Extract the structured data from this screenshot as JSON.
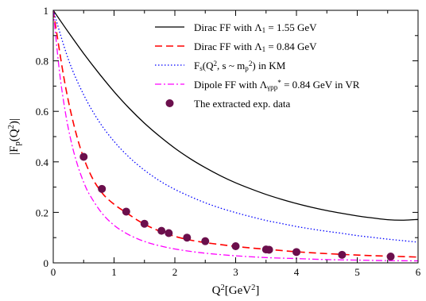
{
  "chart_data": {
    "type": "line",
    "xlabel": {
      "base": "Q",
      "sup": "2",
      "rest": "[GeV",
      "sup2": "2",
      "end": "]"
    },
    "ylabel": {
      "base": "|F",
      "sub": "p",
      "mid": "(Q",
      "sup": "2",
      "end": ")|"
    },
    "xlim": [
      0,
      6
    ],
    "ylim": [
      0,
      1
    ],
    "xticks": [
      "0",
      "1",
      "2",
      "3",
      "4",
      "5",
      "6"
    ],
    "yticks": [
      "0",
      "0.2",
      "0.4",
      "0.6",
      "0.8",
      "1"
    ],
    "grid": false,
    "legend_position": "top-right",
    "series": [
      {
        "name": "Dirac FF with Λ1 = 1.55 GeV",
        "legend_parts": [
          {
            "t": "Dirac FF with Λ"
          },
          {
            "t": "1",
            "s": "sub"
          },
          {
            "t": " = 1.55 GeV"
          }
        ],
        "style": "solid",
        "color": "#000000",
        "x": [
          0,
          0.25,
          0.5,
          0.75,
          1,
          1.25,
          1.5,
          1.75,
          2,
          2.25,
          2.5,
          2.75,
          3,
          3.25,
          3.5,
          3.75,
          4,
          4.25,
          4.5,
          4.75,
          5,
          5.25,
          5.5,
          5.75,
          6
        ],
        "y": [
          1.0,
          0.913,
          0.829,
          0.751,
          0.678,
          0.612,
          0.553,
          0.501,
          0.454,
          0.413,
          0.377,
          0.345,
          0.317,
          0.293,
          0.271,
          0.252,
          0.235,
          0.22,
          0.207,
          0.196,
          0.186,
          0.178,
          0.171,
          0.169,
          0.172
        ]
      },
      {
        "name": "Dirac FF with Λ1 = 0.84 GeV",
        "legend_parts": [
          {
            "t": "Dirac FF with Λ"
          },
          {
            "t": "1",
            "s": "sub"
          },
          {
            "t": " = 0.84 GeV"
          }
        ],
        "style": "dashed",
        "color": "#ff0000",
        "x": [
          0,
          0.2,
          0.4,
          0.6,
          0.8,
          1,
          1.2,
          1.4,
          1.6,
          1.8,
          2,
          2.2,
          2.4,
          2.6,
          2.8,
          3,
          3.3,
          3.6,
          4,
          4.4,
          4.8,
          5.2,
          5.6,
          6
        ],
        "y": [
          1.0,
          0.7,
          0.491,
          0.357,
          0.278,
          0.232,
          0.199,
          0.167,
          0.141,
          0.122,
          0.105,
          0.093,
          0.084,
          0.077,
          0.071,
          0.065,
          0.058,
          0.052,
          0.044,
          0.038,
          0.033,
          0.029,
          0.026,
          0.023
        ]
      },
      {
        "name": "Fs(Q2, s ~ mp2) in KM",
        "legend_parts": [
          {
            "t": "F"
          },
          {
            "t": "s",
            "s": "sub"
          },
          {
            "t": "(Q"
          },
          {
            "t": "2",
            "s": "sup"
          },
          {
            "t": ", s ~ m"
          },
          {
            "t": "p",
            "s": "sub"
          },
          {
            "t": "2",
            "s": "sup"
          },
          {
            "t": ") in KM"
          }
        ],
        "style": "dotted",
        "color": "#0000ff",
        "x": [
          0,
          0.25,
          0.5,
          0.75,
          1,
          1.25,
          1.5,
          1.75,
          2,
          2.25,
          2.5,
          2.75,
          3,
          3.25,
          3.5,
          3.75,
          4,
          4.25,
          4.5,
          4.75,
          5,
          5.25,
          5.5,
          5.75,
          6
        ],
        "y": [
          1.0,
          0.805,
          0.666,
          0.561,
          0.481,
          0.418,
          0.367,
          0.325,
          0.291,
          0.263,
          0.238,
          0.217,
          0.199,
          0.183,
          0.168,
          0.156,
          0.144,
          0.134,
          0.125,
          0.117,
          0.108,
          0.101,
          0.094,
          0.088,
          0.082
        ]
      },
      {
        "name": "Dipole FF with Λγpp* = 0.84 GeV in VR",
        "legend_parts": [
          {
            "t": "Dipole FF with Λ"
          },
          {
            "t": "γpp",
            "s": "sub"
          },
          {
            "t": "*",
            "s": "sup"
          },
          {
            "t": " = 0.84 GeV in VR"
          }
        ],
        "style": "dashdot",
        "color": "#ff00ff",
        "x": [
          0,
          0.1,
          0.2,
          0.3,
          0.4,
          0.5,
          0.6,
          0.8,
          1,
          1.2,
          1.4,
          1.6,
          1.8,
          2,
          2.3,
          2.6,
          3,
          3.5,
          4,
          4.5,
          5,
          5.5,
          6
        ],
        "y": [
          1.0,
          0.762,
          0.595,
          0.475,
          0.387,
          0.32,
          0.269,
          0.197,
          0.149,
          0.117,
          0.094,
          0.077,
          0.065,
          0.055,
          0.044,
          0.036,
          0.028,
          0.021,
          0.017,
          0.013,
          0.011,
          0.009,
          0.008
        ]
      },
      {
        "name": "The extracted exp. data",
        "legend_parts": [
          {
            "t": "The extracted exp. data"
          }
        ],
        "style": "markers",
        "color": "#6b0f4c",
        "x": [
          0.5,
          0.8,
          1.2,
          1.5,
          1.78,
          1.9,
          2.2,
          2.5,
          3.0,
          3.5,
          3.55,
          4.0,
          4.75,
          5.55
        ],
        "y": [
          0.42,
          0.293,
          0.203,
          0.155,
          0.127,
          0.118,
          0.1,
          0.086,
          0.066,
          0.053,
          0.052,
          0.043,
          0.032,
          0.025
        ]
      }
    ]
  }
}
